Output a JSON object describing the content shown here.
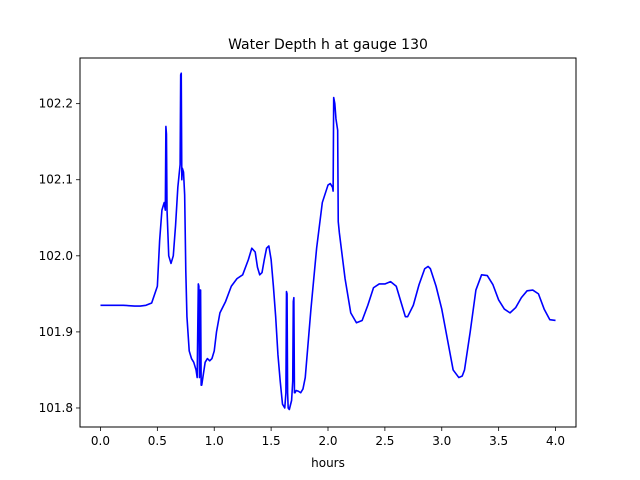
{
  "chart_data": {
    "type": "line",
    "title": "Water Depth h at gauge 130",
    "xlabel": "hours",
    "ylabel": "",
    "xlim": [
      -0.18,
      4.18
    ],
    "ylim": [
      101.775,
      102.26
    ],
    "xticks": [
      "0.0",
      "0.5",
      "1.0",
      "1.5",
      "2.0",
      "2.5",
      "3.0",
      "3.5",
      "4.0"
    ],
    "yticks": [
      "101.8",
      "101.9",
      "102.0",
      "102.1",
      "102.2"
    ],
    "grid": false,
    "series": [
      {
        "name": "",
        "color": "#0000ff",
        "x": [
          0.0,
          0.1,
          0.2,
          0.3,
          0.35,
          0.4,
          0.45,
          0.5,
          0.52,
          0.54,
          0.56,
          0.57,
          0.575,
          0.58,
          0.585,
          0.59,
          0.6,
          0.62,
          0.64,
          0.66,
          0.68,
          0.7,
          0.705,
          0.71,
          0.715,
          0.72,
          0.73,
          0.74,
          0.75,
          0.76,
          0.78,
          0.8,
          0.82,
          0.84,
          0.85,
          0.86,
          0.865,
          0.87,
          0.875,
          0.88,
          0.885,
          0.89,
          0.9,
          0.92,
          0.94,
          0.96,
          0.98,
          1.0,
          1.02,
          1.05,
          1.1,
          1.15,
          1.2,
          1.25,
          1.3,
          1.33,
          1.36,
          1.38,
          1.4,
          1.42,
          1.44,
          1.46,
          1.48,
          1.5,
          1.52,
          1.54,
          1.56,
          1.58,
          1.6,
          1.62,
          1.63,
          1.635,
          1.64,
          1.645,
          1.65,
          1.66,
          1.68,
          1.69,
          1.695,
          1.7,
          1.705,
          1.71,
          1.72,
          1.74,
          1.76,
          1.78,
          1.8,
          1.85,
          1.9,
          1.95,
          2.0,
          2.02,
          2.04,
          2.045,
          2.05,
          2.06,
          2.07,
          2.08,
          2.085,
          2.09,
          2.1,
          2.15,
          2.2,
          2.25,
          2.3,
          2.35,
          2.4,
          2.45,
          2.5,
          2.55,
          2.6,
          2.65,
          2.68,
          2.7,
          2.75,
          2.8,
          2.85,
          2.88,
          2.9,
          2.95,
          3.0,
          3.05,
          3.1,
          3.15,
          3.18,
          3.2,
          3.25,
          3.3,
          3.35,
          3.4,
          3.45,
          3.5,
          3.55,
          3.6,
          3.65,
          3.7,
          3.75,
          3.8,
          3.85,
          3.9,
          3.95,
          4.0
        ],
        "y": [
          101.935,
          101.935,
          101.935,
          101.934,
          101.934,
          101.935,
          101.938,
          101.96,
          102.02,
          102.06,
          102.07,
          102.06,
          102.17,
          102.16,
          102.06,
          102.04,
          102.0,
          101.99,
          102.0,
          102.04,
          102.09,
          102.12,
          102.238,
          102.24,
          102.1,
          102.115,
          102.11,
          102.08,
          101.98,
          101.92,
          101.875,
          101.865,
          101.86,
          101.85,
          101.84,
          101.963,
          101.96,
          101.84,
          101.955,
          101.955,
          101.83,
          101.83,
          101.84,
          101.86,
          101.865,
          101.862,
          101.865,
          101.875,
          101.9,
          101.925,
          101.94,
          101.96,
          101.97,
          101.975,
          101.995,
          102.01,
          102.005,
          101.985,
          101.975,
          101.978,
          101.995,
          102.01,
          102.013,
          101.995,
          101.96,
          101.92,
          101.87,
          101.835,
          101.805,
          101.8,
          101.82,
          101.953,
          101.95,
          101.82,
          101.8,
          101.798,
          101.81,
          101.835,
          101.94,
          101.945,
          101.82,
          101.82,
          101.823,
          101.822,
          101.82,
          101.825,
          101.84,
          101.93,
          102.01,
          102.07,
          102.093,
          102.095,
          102.09,
          102.085,
          102.208,
          102.2,
          102.18,
          102.17,
          102.165,
          102.045,
          102.03,
          101.97,
          101.925,
          101.912,
          101.915,
          101.935,
          101.958,
          101.963,
          101.963,
          101.966,
          101.96,
          101.935,
          101.92,
          101.92,
          101.935,
          101.962,
          101.983,
          101.986,
          101.983,
          101.96,
          101.93,
          101.89,
          101.85,
          101.84,
          101.842,
          101.85,
          101.9,
          101.955,
          101.975,
          101.974,
          101.962,
          101.942,
          101.93,
          101.925,
          101.932,
          101.945,
          101.954,
          101.955,
          101.95,
          101.93,
          101.916,
          101.915
        ]
      }
    ]
  }
}
